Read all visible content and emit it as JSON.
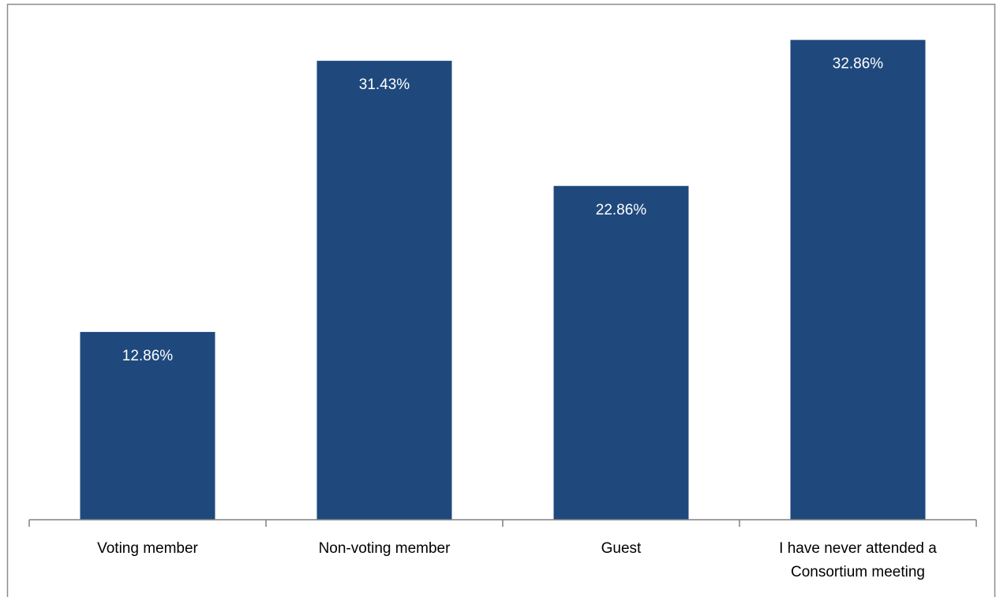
{
  "chart_data": {
    "type": "bar",
    "categories": [
      [
        "Voting member"
      ],
      [
        "Non-voting member"
      ],
      [
        "Guest"
      ],
      [
        "I have never attended a",
        "Consortium meeting"
      ]
    ],
    "values": [
      12.86,
      31.43,
      22.86,
      32.86
    ],
    "value_labels": [
      "12.86%",
      "31.43%",
      "22.86%",
      "32.86%"
    ],
    "title": "",
    "xlabel": "",
    "ylabel": "",
    "ylim": [
      0,
      35
    ],
    "grid": false,
    "legend": "none",
    "bar_color": "#1F497D",
    "axis_color": "#808080",
    "label_color": "#FFFFFF"
  }
}
